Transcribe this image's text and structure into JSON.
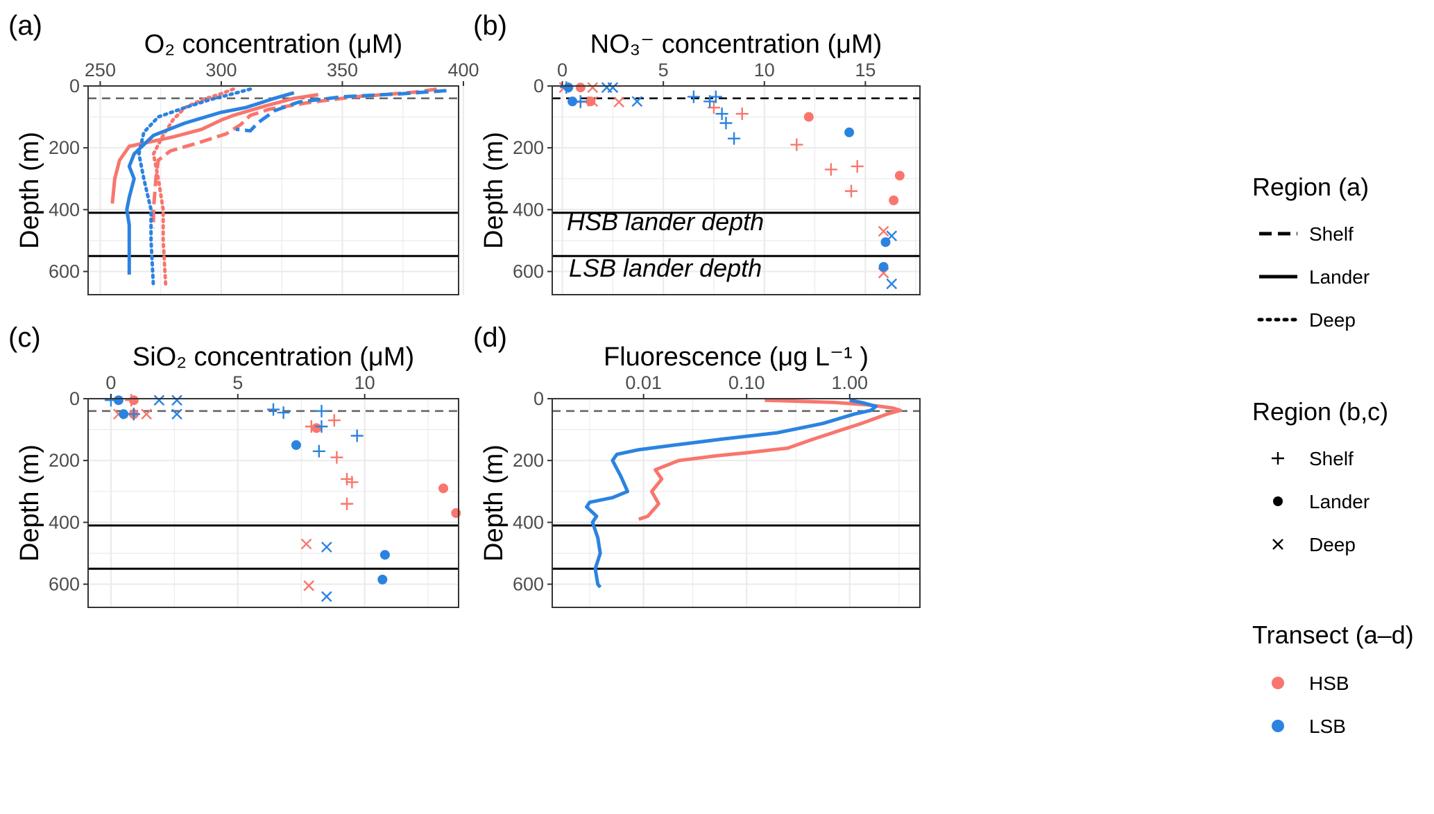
{
  "colors": {
    "HSB": "#F8766D",
    "LSB": "#2B83E0",
    "grid": "#EBEBEB",
    "border": "#333333",
    "dashed": "#666666"
  },
  "legend": {
    "region_a": {
      "title": "Region (a)",
      "items": [
        "Shelf",
        "Lander",
        "Deep"
      ]
    },
    "region_bc": {
      "title": "Region (b,c)",
      "items": [
        "Shelf",
        "Lander",
        "Deep"
      ]
    },
    "transect": {
      "title": "Transect (a–d)",
      "items": [
        "HSB",
        "LSB"
      ]
    }
  },
  "chart_data": [
    {
      "id": "a",
      "panel_label": "(a)",
      "type": "line",
      "title": "O₂ concentration (μM)",
      "xlabel": "O₂ concentration (μM)",
      "ylabel": "Depth (m)",
      "xlim": [
        245,
        398
      ],
      "ylim": [
        0,
        675
      ],
      "xticks": [
        250,
        300,
        350,
        400
      ],
      "yticks": [
        0,
        200,
        400,
        600
      ],
      "hlines": [
        {
          "y": 40,
          "style": "dashed"
        },
        {
          "y": 410,
          "style": "solid"
        },
        {
          "y": 550,
          "style": "solid"
        }
      ],
      "series": [
        {
          "name": "HSB Shelf",
          "transect": "HSB",
          "region": "Shelf",
          "points": [
            [
              389,
              10
            ],
            [
              380,
              20
            ],
            [
              355,
              35
            ],
            [
              335,
              55
            ],
            [
              320,
              75
            ],
            [
              312,
              95
            ],
            [
              308,
              125
            ],
            [
              302,
              155
            ],
            [
              290,
              185
            ],
            [
              279,
              210
            ],
            [
              274,
              240
            ],
            [
              273,
              300
            ],
            [
              272,
              400
            ],
            [
              272,
              460
            ]
          ]
        },
        {
          "name": "HSB Lander",
          "transect": "HSB",
          "region": "Lander",
          "points": [
            [
              340,
              28
            ],
            [
              330,
              40
            ],
            [
              318,
              65
            ],
            [
              305,
              95
            ],
            [
              300,
              110
            ],
            [
              292,
              140
            ],
            [
              280,
              165
            ],
            [
              262,
              195
            ],
            [
              258,
              240
            ],
            [
              256,
              300
            ],
            [
              255,
              380
            ]
          ]
        },
        {
          "name": "HSB Deep",
          "transect": "HSB",
          "region": "Deep",
          "points": [
            [
              305,
              10
            ],
            [
              300,
              25
            ],
            [
              292,
              45
            ],
            [
              285,
              70
            ],
            [
              280,
              110
            ],
            [
              276,
              160
            ],
            [
              272,
              220
            ],
            [
              274,
              300
            ],
            [
              276,
              400
            ],
            [
              276,
              500
            ],
            [
              277,
              640
            ]
          ]
        },
        {
          "name": "LSB Shelf",
          "transect": "LSB",
          "region": "Shelf",
          "points": [
            [
              393,
              15
            ],
            [
              375,
              25
            ],
            [
              350,
              35
            ],
            [
              332,
              52
            ],
            [
              322,
              80
            ],
            [
              315,
              120
            ],
            [
              312,
              145
            ],
            [
              306,
              140
            ]
          ]
        },
        {
          "name": "LSB Lander",
          "transect": "LSB",
          "region": "Lander",
          "points": [
            [
              330,
              22
            ],
            [
              322,
              40
            ],
            [
              310,
              70
            ],
            [
              300,
              85
            ],
            [
              285,
              120
            ],
            [
              272,
              160
            ],
            [
              264,
              220
            ],
            [
              262,
              260
            ],
            [
              264,
              300
            ],
            [
              262,
              360
            ],
            [
              261,
              400
            ],
            [
              262,
              450
            ],
            [
              262,
              540
            ],
            [
              262,
              610
            ]
          ]
        },
        {
          "name": "LSB Deep",
          "transect": "LSB",
          "region": "Deep",
          "points": [
            [
              312,
              10
            ],
            [
              305,
              25
            ],
            [
              295,
              45
            ],
            [
              285,
              70
            ],
            [
              274,
              100
            ],
            [
              268,
              150
            ],
            [
              266,
              220
            ],
            [
              268,
              300
            ],
            [
              271,
              400
            ],
            [
              271,
              500
            ],
            [
              272,
              650
            ]
          ]
        }
      ]
    },
    {
      "id": "b",
      "panel_label": "(b)",
      "type": "scatter",
      "title": "NO₃⁻ concentration (μM)",
      "xlabel": "NO₃⁻ concentration (μM)",
      "ylabel": "Depth (m)",
      "xlim": [
        -0.5,
        17.7
      ],
      "ylim": [
        0,
        675
      ],
      "xticks": [
        0,
        5,
        10,
        15
      ],
      "yticks": [
        0,
        200,
        400,
        600
      ],
      "hlines": [
        {
          "y": 40,
          "style": "dashed"
        },
        {
          "y": 410,
          "style": "solid"
        },
        {
          "y": 550,
          "style": "solid"
        }
      ],
      "annotations": [
        {
          "text": "HSB lander depth",
          "x": 5.1,
          "y": 440
        },
        {
          "text": "LSB lander depth",
          "x": 5.1,
          "y": 590
        }
      ],
      "points": [
        {
          "x": 0.1,
          "y": 5,
          "t": "HSB",
          "r": "Deep"
        },
        {
          "x": 1.5,
          "y": 5,
          "t": "HSB",
          "r": "Deep"
        },
        {
          "x": 2.8,
          "y": 52,
          "t": "HSB",
          "r": "Deep"
        },
        {
          "x": 1.5,
          "y": 50,
          "t": "HSB",
          "r": "Deep"
        },
        {
          "x": 15.9,
          "y": 470,
          "t": "HSB",
          "r": "Deep"
        },
        {
          "x": 15.9,
          "y": 605,
          "t": "HSB",
          "r": "Deep"
        },
        {
          "x": 0.9,
          "y": 5,
          "t": "HSB",
          "r": "Lander"
        },
        {
          "x": 1.4,
          "y": 50,
          "t": "HSB",
          "r": "Lander"
        },
        {
          "x": 12.2,
          "y": 100,
          "t": "HSB",
          "r": "Lander"
        },
        {
          "x": 16.7,
          "y": 290,
          "t": "HSB",
          "r": "Lander"
        },
        {
          "x": 16.4,
          "y": 370,
          "t": "HSB",
          "r": "Lander"
        },
        {
          "x": 0.9,
          "y": 52,
          "t": "HSB",
          "r": "Shelf"
        },
        {
          "x": 7.5,
          "y": 70,
          "t": "HSB",
          "r": "Shelf"
        },
        {
          "x": 8.9,
          "y": 90,
          "t": "HSB",
          "r": "Shelf"
        },
        {
          "x": 11.6,
          "y": 190,
          "t": "HSB",
          "r": "Shelf"
        },
        {
          "x": 14.6,
          "y": 260,
          "t": "HSB",
          "r": "Shelf"
        },
        {
          "x": 13.3,
          "y": 270,
          "t": "HSB",
          "r": "Shelf"
        },
        {
          "x": 14.3,
          "y": 340,
          "t": "HSB",
          "r": "Shelf"
        },
        {
          "x": 2.2,
          "y": 5,
          "t": "LSB",
          "r": "Deep"
        },
        {
          "x": 2.5,
          "y": 5,
          "t": "LSB",
          "r": "Deep"
        },
        {
          "x": 3.7,
          "y": 50,
          "t": "LSB",
          "r": "Deep"
        },
        {
          "x": 16.3,
          "y": 485,
          "t": "LSB",
          "r": "Deep"
        },
        {
          "x": 16.3,
          "y": 640,
          "t": "LSB",
          "r": "Deep"
        },
        {
          "x": 0.3,
          "y": 5,
          "t": "LSB",
          "r": "Lander"
        },
        {
          "x": 0.5,
          "y": 50,
          "t": "LSB",
          "r": "Lander"
        },
        {
          "x": 14.2,
          "y": 150,
          "t": "LSB",
          "r": "Lander"
        },
        {
          "x": 16.0,
          "y": 505,
          "t": "LSB",
          "r": "Lander"
        },
        {
          "x": 15.9,
          "y": 585,
          "t": "LSB",
          "r": "Lander"
        },
        {
          "x": 0.2,
          "y": 5,
          "t": "LSB",
          "r": "Shelf"
        },
        {
          "x": 0.9,
          "y": 50,
          "t": "LSB",
          "r": "Shelf"
        },
        {
          "x": 6.5,
          "y": 35,
          "t": "LSB",
          "r": "Shelf"
        },
        {
          "x": 7.6,
          "y": 35,
          "t": "LSB",
          "r": "Shelf"
        },
        {
          "x": 7.3,
          "y": 50,
          "t": "LSB",
          "r": "Shelf"
        },
        {
          "x": 7.9,
          "y": 90,
          "t": "LSB",
          "r": "Shelf"
        },
        {
          "x": 8.1,
          "y": 120,
          "t": "LSB",
          "r": "Shelf"
        },
        {
          "x": 8.5,
          "y": 170,
          "t": "LSB",
          "r": "Shelf"
        }
      ]
    },
    {
      "id": "c",
      "panel_label": "(c)",
      "type": "scatter",
      "title": "SiO₂ concentration (μM)",
      "xlabel": "SiO₂ concentration (μM)",
      "ylabel": "Depth (m)",
      "xlim": [
        -0.9,
        13.7
      ],
      "ylim": [
        0,
        675
      ],
      "xticks": [
        0,
        5,
        10
      ],
      "yticks": [
        0,
        200,
        400,
        600
      ],
      "hlines": [
        {
          "y": 40,
          "style": "dashed"
        },
        {
          "y": 410,
          "style": "solid"
        },
        {
          "y": 550,
          "style": "solid"
        }
      ],
      "points": [
        {
          "x": 0.3,
          "y": 50,
          "t": "HSB",
          "r": "Deep"
        },
        {
          "x": 1.4,
          "y": 50,
          "t": "HSB",
          "r": "Deep"
        },
        {
          "x": 7.7,
          "y": 470,
          "t": "HSB",
          "r": "Deep"
        },
        {
          "x": 7.8,
          "y": 605,
          "t": "HSB",
          "r": "Deep"
        },
        {
          "x": 0.9,
          "y": 5,
          "t": "HSB",
          "r": "Lander"
        },
        {
          "x": 0.9,
          "y": 50,
          "t": "HSB",
          "r": "Lander"
        },
        {
          "x": 8.1,
          "y": 95,
          "t": "HSB",
          "r": "Lander"
        },
        {
          "x": 13.1,
          "y": 290,
          "t": "HSB",
          "r": "Lander"
        },
        {
          "x": 13.6,
          "y": 370,
          "t": "HSB",
          "r": "Lander"
        },
        {
          "x": 0.8,
          "y": 5,
          "t": "HSB",
          "r": "Shelf"
        },
        {
          "x": 0.9,
          "y": 50,
          "t": "HSB",
          "r": "Shelf"
        },
        {
          "x": 7.9,
          "y": 90,
          "t": "HSB",
          "r": "Shelf"
        },
        {
          "x": 8.8,
          "y": 70,
          "t": "HSB",
          "r": "Shelf"
        },
        {
          "x": 8.9,
          "y": 190,
          "t": "HSB",
          "r": "Shelf"
        },
        {
          "x": 9.3,
          "y": 260,
          "t": "HSB",
          "r": "Shelf"
        },
        {
          "x": 9.5,
          "y": 270,
          "t": "HSB",
          "r": "Shelf"
        },
        {
          "x": 9.3,
          "y": 340,
          "t": "HSB",
          "r": "Shelf"
        },
        {
          "x": 1.9,
          "y": 5,
          "t": "LSB",
          "r": "Deep"
        },
        {
          "x": 2.6,
          "y": 5,
          "t": "LSB",
          "r": "Deep"
        },
        {
          "x": 2.6,
          "y": 50,
          "t": "LSB",
          "r": "Deep"
        },
        {
          "x": 8.5,
          "y": 480,
          "t": "LSB",
          "r": "Deep"
        },
        {
          "x": 8.5,
          "y": 640,
          "t": "LSB",
          "r": "Deep"
        },
        {
          "x": 0.3,
          "y": 5,
          "t": "LSB",
          "r": "Lander"
        },
        {
          "x": 0.5,
          "y": 50,
          "t": "LSB",
          "r": "Lander"
        },
        {
          "x": 7.3,
          "y": 150,
          "t": "LSB",
          "r": "Lander"
        },
        {
          "x": 10.8,
          "y": 505,
          "t": "LSB",
          "r": "Lander"
        },
        {
          "x": 10.7,
          "y": 585,
          "t": "LSB",
          "r": "Lander"
        },
        {
          "x": 0.0,
          "y": 5,
          "t": "LSB",
          "r": "Shelf"
        },
        {
          "x": 0.9,
          "y": 50,
          "t": "LSB",
          "r": "Shelf"
        },
        {
          "x": 6.4,
          "y": 35,
          "t": "LSB",
          "r": "Shelf"
        },
        {
          "x": 6.8,
          "y": 45,
          "t": "LSB",
          "r": "Shelf"
        },
        {
          "x": 8.3,
          "y": 40,
          "t": "LSB",
          "r": "Shelf"
        },
        {
          "x": 8.3,
          "y": 90,
          "t": "LSB",
          "r": "Shelf"
        },
        {
          "x": 9.7,
          "y": 120,
          "t": "LSB",
          "r": "Shelf"
        },
        {
          "x": 8.2,
          "y": 170,
          "t": "LSB",
          "r": "Shelf"
        }
      ]
    },
    {
      "id": "d",
      "panel_label": "(d)",
      "type": "line",
      "title": "Fluorescence (μg L⁻¹ )",
      "xlabel": "Fluorescence (μg L⁻¹ )",
      "ylabel": "Depth (m)",
      "xscale": "log10",
      "xlim": [
        0.0013,
        4.8
      ],
      "ylim": [
        0,
        675
      ],
      "xticks": [
        0.01,
        0.1,
        1
      ],
      "xtick_labels": [
        "0.01",
        "0.10",
        "1.00"
      ],
      "yticks": [
        0,
        200,
        400,
        600
      ],
      "hlines": [
        {
          "y": 40,
          "style": "dashed"
        },
        {
          "y": 410,
          "style": "solid"
        },
        {
          "y": 550,
          "style": "solid"
        }
      ],
      "series": [
        {
          "name": "HSB",
          "transect": "HSB",
          "points": [
            [
              0.15,
              5
            ],
            [
              0.7,
              12
            ],
            [
              1.5,
              20
            ],
            [
              2.6,
              30
            ],
            [
              3.1,
              38
            ],
            [
              2.3,
              50
            ],
            [
              1.3,
              80
            ],
            [
              0.85,
              100
            ],
            [
              0.45,
              130
            ],
            [
              0.25,
              160
            ],
            [
              0.1,
              175
            ],
            [
              0.05,
              185
            ],
            [
              0.022,
              200
            ],
            [
              0.013,
              230
            ],
            [
              0.015,
              260
            ],
            [
              0.012,
              300
            ],
            [
              0.014,
              340
            ],
            [
              0.011,
              380
            ],
            [
              0.009,
              390
            ]
          ]
        },
        {
          "name": "LSB",
          "transect": "LSB",
          "points": [
            [
              1.0,
              5
            ],
            [
              1.3,
              12
            ],
            [
              1.8,
              25
            ],
            [
              1.6,
              38
            ],
            [
              1.1,
              50
            ],
            [
              0.55,
              80
            ],
            [
              0.2,
              110
            ],
            [
              0.06,
              130
            ],
            [
              0.02,
              150
            ],
            [
              0.009,
              165
            ],
            [
              0.0055,
              180
            ],
            [
              0.005,
              200
            ],
            [
              0.006,
              250
            ],
            [
              0.007,
              300
            ],
            [
              0.005,
              320
            ],
            [
              0.003,
              335
            ],
            [
              0.0028,
              350
            ],
            [
              0.0035,
              380
            ],
            [
              0.0032,
              400
            ],
            [
              0.0036,
              450
            ],
            [
              0.0038,
              500
            ],
            [
              0.0034,
              550
            ],
            [
              0.0036,
              600
            ],
            [
              0.0038,
              610
            ]
          ]
        }
      ]
    }
  ]
}
